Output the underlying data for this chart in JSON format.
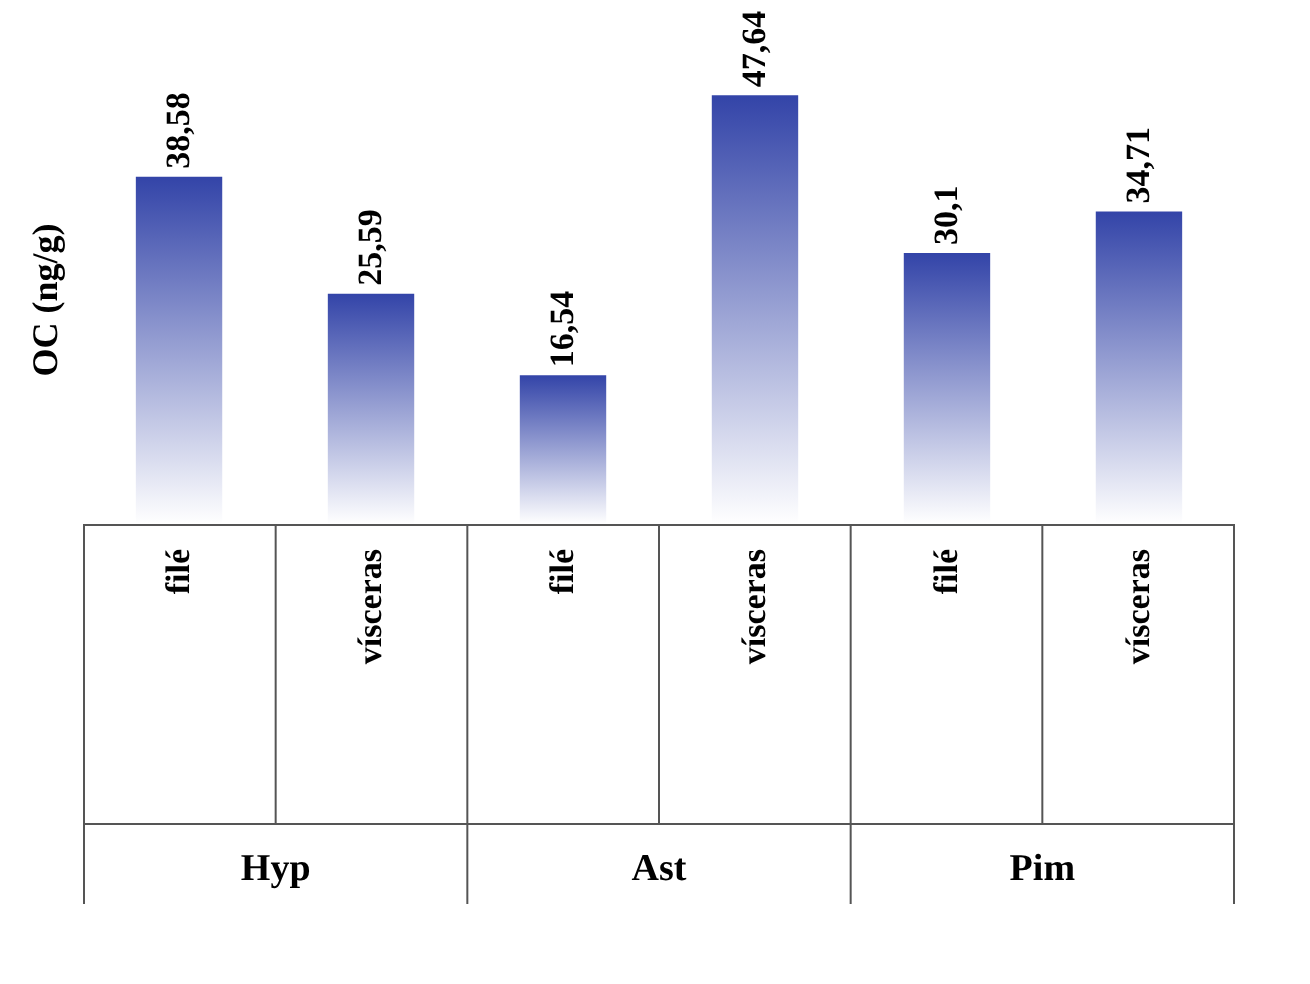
{
  "chart_data": {
    "type": "bar",
    "ylabel": "OC (ng/g)",
    "categories": [
      "filé",
      "vísceras",
      "filé",
      "vísceras",
      "filé",
      "vísceras"
    ],
    "values": [
      38.58,
      25.59,
      16.54,
      47.64,
      30.1,
      34.71
    ],
    "value_labels": [
      "38,58",
      "25,59",
      "16,54",
      "47,64",
      "30,1",
      "34,71"
    ],
    "color": "#3344a8",
    "annotations": [
      "Hyp",
      "Ast",
      "Pim"
    ],
    "grid": false
  }
}
